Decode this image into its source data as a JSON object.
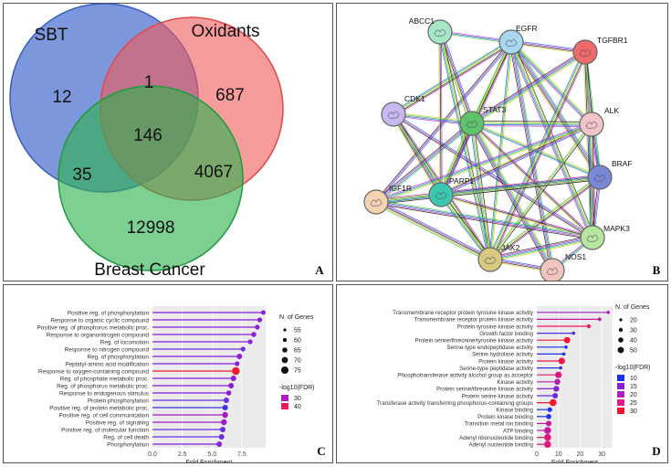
{
  "panels": {
    "a": {
      "letter": "A"
    },
    "b": {
      "letter": "B"
    },
    "c": {
      "letter": "C"
    },
    "d": {
      "letter": "D"
    }
  },
  "venn": {
    "sets": [
      {
        "name": "SBT",
        "color": "#4b6fce"
      },
      {
        "name": "Oxidants",
        "color": "#f25a5a"
      },
      {
        "name": "Breast Cancer",
        "color": "#2fb24f"
      }
    ],
    "regions": {
      "sbt_only": "12",
      "sbt_oxidants": "1",
      "oxidants_only": "687",
      "all_three": "146",
      "sbt_breast": "35",
      "oxidants_breast": "4067",
      "breast_only": "12998"
    }
  },
  "network": {
    "nodes": [
      {
        "id": "ABCC1",
        "color": "#a8e6c8"
      },
      {
        "id": "EGFR",
        "color": "#a8d8f0"
      },
      {
        "id": "TGFBR1",
        "color": "#f06a6a"
      },
      {
        "id": "CDK1",
        "color": "#c8b8f0"
      },
      {
        "id": "STAT3",
        "color": "#5ec46a"
      },
      {
        "id": "ALK",
        "color": "#f2c4c8"
      },
      {
        "id": "BRAF",
        "color": "#7a88d8"
      },
      {
        "id": "IGF1R",
        "color": "#f5d2b0"
      },
      {
        "id": "PARP1",
        "color": "#3cc8b0"
      },
      {
        "id": "MAPK3",
        "color": "#b8e6a0"
      },
      {
        "id": "NOS1",
        "color": "#f2c4c0"
      },
      {
        "id": "JAK2",
        "color": "#d8c880"
      }
    ]
  },
  "chart_data": [
    {
      "type": "lollipop",
      "xlabel": "Fold Enrichment",
      "x_ticks": [
        "0.0",
        "2.5",
        "5.0",
        "7.5"
      ],
      "xlim": [
        0,
        9.5
      ],
      "categories": [
        "Positive reg. of phosphorylation",
        "Response to organic cyclic compound",
        "Positive reg. of phosphorus metabolic proc.",
        "Response to organonitrogen compound",
        "Reg. of locomotion",
        "Response to nitrogen compound",
        "Reg. of phosphorylation",
        "Peptidyl-amino acid modification",
        "Response to oxygen-containing compound",
        "Reg. of phosphate metabolic proc.",
        "Reg. of phosphorus metabolic proc.",
        "Response to endogenous stimulus",
        "Protein phosphorylation",
        "Positive reg. of protein metabolic proc.",
        "Positive reg. of cell communication",
        "Positive reg. of signaling",
        "Positive reg. of molecular function",
        "Reg. of cell death",
        "Phosphorylation"
      ],
      "values": [
        9.3,
        9.0,
        8.8,
        8.5,
        8.2,
        7.6,
        7.3,
        7.1,
        7.0,
        6.8,
        6.6,
        6.4,
        6.2,
        6.1,
        6.1,
        6.0,
        5.9,
        5.8,
        5.6
      ],
      "colors": [
        "#8a1fd8",
        "#8a1fd8",
        "#8a1fd8",
        "#8a1fd8",
        "#8a1fd8",
        "#6a2fe0",
        "#8a1fd8",
        "#8a1fd8",
        "#f01830",
        "#8a1fd8",
        "#8a1fd8",
        "#8a1fd8",
        "#6a2fe0",
        "#3a30e8",
        "#a01ac8",
        "#a01ac8",
        "#6a2fe0",
        "#6a2fe0",
        "#8a1fd8"
      ],
      "sizes": [
        2.5,
        2.6,
        2.6,
        2.8,
        2.6,
        2.6,
        3.0,
        2.6,
        4.2,
        3.0,
        3.0,
        2.8,
        3.0,
        3.0,
        3.2,
        3.2,
        3.0,
        3.0,
        3.0
      ],
      "size_legend": {
        "title": "N. of Genes",
        "labels": [
          "55",
          "60",
          "65",
          "70",
          "75"
        ]
      },
      "color_legend": {
        "title": "-log10(FDR)",
        "labels": [
          "30",
          "40"
        ],
        "colors": [
          "#b020c0",
          "#f0185a"
        ]
      }
    },
    {
      "type": "lollipop",
      "xlabel": "Fold Enrichment",
      "x_ticks": [
        "0",
        "10",
        "20",
        "30"
      ],
      "xlim": [
        0,
        35
      ],
      "categories": [
        "Transmembrane receptor protein tyrosine kinase activity",
        "Transmembrane receptor protein kinase activity",
        "Protein tyrosine kinase activity",
        "Growth factor binding",
        "Protein serine/threonine/tyrosine kinase activity",
        "Serine-type endopeptidase activity",
        "Serine hydrolase activity",
        "Protein kinase activity",
        "Serine-type peptidase activity",
        "Phosphotransferase activity alcohol group as acceptor",
        "Kinase activity",
        "Protein serine/threonine kinase activity",
        "Protein serine kinase activity",
        "Transferase activity transferring phosphorus-containing groups",
        "Kinase binding",
        "Protein kinase binding",
        "Transition metal ion binding",
        "ATP binding",
        "Adenyl ribonucleotide binding",
        "Adenyl nucleotide binding"
      ],
      "values": [
        33,
        29,
        24,
        17,
        14,
        13.5,
        12.5,
        11.5,
        11,
        10,
        9.5,
        9,
        8.5,
        7.5,
        6,
        5.5,
        5.5,
        5,
        5,
        5
      ],
      "colors": [
        "#a020c8",
        "#c01aa0",
        "#f0186a",
        "#4a30e0",
        "#f01830",
        "#1a30f0",
        "#2030e8",
        "#f0184a",
        "#2a30e8",
        "#e0187a",
        "#b020b0",
        "#8a20d0",
        "#6a28e0",
        "#f01830",
        "#2030f0",
        "#2030f0",
        "#c01aa0",
        "#c01aa0",
        "#e0187a",
        "#e0187a"
      ],
      "sizes": [
        1.8,
        2.0,
        2.2,
        1.8,
        3.4,
        1.8,
        1.8,
        3.6,
        1.8,
        3.6,
        3.2,
        3.2,
        3.0,
        3.8,
        2.6,
        2.8,
        3.0,
        3.8,
        3.8,
        3.8
      ],
      "size_legend": {
        "title": "N. of Genes",
        "labels": [
          "20",
          "30",
          "40",
          "50"
        ]
      },
      "color_legend": {
        "title": "-log10(FDR)",
        "labels": [
          "10",
          "15",
          "20",
          "25",
          "30"
        ],
        "colors": [
          "#1a30f0",
          "#8a20d0",
          "#b020c0",
          "#e01a8a",
          "#f01830"
        ]
      }
    }
  ]
}
